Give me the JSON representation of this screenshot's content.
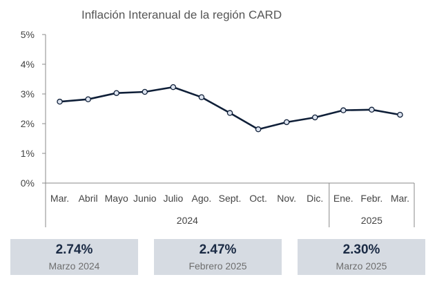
{
  "chart_data": {
    "type": "line",
    "title": "Inflación Interanual de la región CARD",
    "categories": [
      "Mar.",
      "Abril",
      "Mayo",
      "Junio",
      "Julio",
      "Ago.",
      "Sept.",
      "Oct.",
      "Nov.",
      "Dic.",
      "Ene.",
      "Febr.",
      "Mar."
    ],
    "category_years": [
      "2024",
      "2024",
      "2024",
      "2024",
      "2024",
      "2024",
      "2024",
      "2024",
      "2024",
      "2024",
      "2025",
      "2025",
      "2025"
    ],
    "year_groups": [
      {
        "label": "2024"
      },
      {
        "label": "2025"
      }
    ],
    "series": [
      {
        "values": [
          2.74,
          2.82,
          3.03,
          3.07,
          3.23,
          2.89,
          2.36,
          1.81,
          2.05,
          2.21,
          2.45,
          2.47,
          2.3
        ],
        "color": "#0f1f38"
      }
    ],
    "y_ticks": [
      "0%",
      "1%",
      "2%",
      "3%",
      "4%",
      "5%"
    ],
    "ylim": [
      0,
      5
    ],
    "xlabel": "",
    "ylabel": "",
    "grid": false,
    "legend": "none"
  },
  "kpis": [
    {
      "value": "2.74%",
      "caption": "Marzo 2024"
    },
    {
      "value": "2.47%",
      "caption": "Febrero 2025"
    },
    {
      "value": "2.30%",
      "caption": "Marzo 2025"
    }
  ],
  "colors": {
    "line": "#0f1f38",
    "marker_fill": "#dde4f0",
    "axis": "#888888",
    "kpi_background": "#d6dbe2"
  }
}
